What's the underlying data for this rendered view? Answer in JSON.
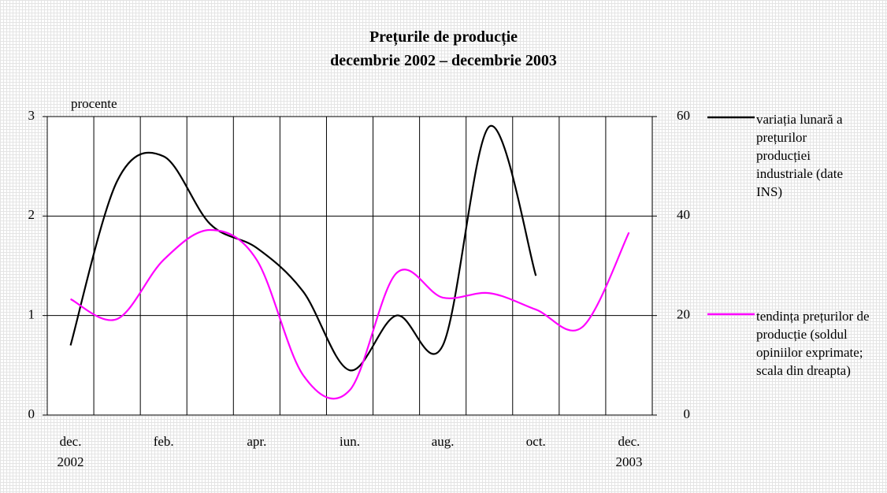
{
  "chart_data": {
    "type": "line",
    "title": "Prețurile de producție",
    "subtitle": "decembrie 2002 – decembrie 2003",
    "y_label": "procente",
    "categories": [
      "dec.\n2002",
      null,
      "feb.",
      null,
      "apr.",
      null,
      "iun.",
      null,
      "aug.",
      null,
      "oct.",
      null,
      "dec.\n2003"
    ],
    "series": [
      {
        "name": "variația lunară a prețurilor producției industriale (date INS)",
        "color": "#000000",
        "axis": "y",
        "values": [
          0.7,
          2.35,
          2.6,
          1.92,
          1.68,
          1.24,
          0.45,
          1.0,
          0.7,
          2.9,
          1.4,
          null,
          null
        ]
      },
      {
        "name": "tendința prețurilor de producție (soldul opiniilor exprimate; scala din dreapta)",
        "color": "#ff00ff",
        "axis": "y2",
        "values": [
          23.3,
          19.3,
          31.2,
          37.2,
          31.2,
          8,
          5,
          28.5,
          23.6,
          24.5,
          21.2,
          17.7,
          36.7
        ]
      }
    ],
    "ylim": [
      0,
      3
    ],
    "yticks": [
      0,
      1,
      2,
      3
    ],
    "y2lim": [
      0,
      60
    ],
    "y2ticks": [
      0,
      20,
      40,
      60
    ],
    "grid": true
  }
}
